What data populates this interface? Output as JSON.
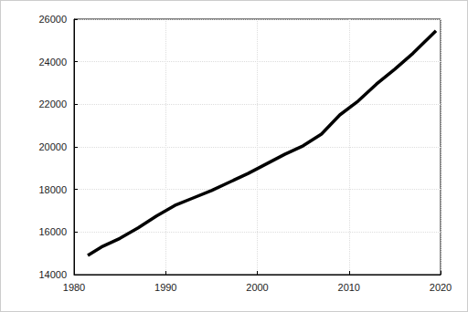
{
  "chart_data": {
    "type": "line",
    "x": [
      1981.5,
      1983,
      1985,
      1987,
      1989,
      1991,
      1993,
      1995,
      1997,
      1999,
      2001,
      2003,
      2005,
      2007,
      2009,
      2011,
      2013,
      2015,
      2017,
      2019.5
    ],
    "values": [
      14900,
      15300,
      15700,
      16200,
      16750,
      17250,
      17600,
      17950,
      18350,
      18750,
      19200,
      19650,
      20050,
      20600,
      21500,
      22150,
      22950,
      23650,
      24400,
      25450
    ],
    "color": "#000000",
    "xlim": [
      1980,
      2020
    ],
    "xticks": [
      1980,
      1990,
      2000,
      2010,
      2020
    ],
    "ylim": [
      14000,
      26000
    ],
    "yticks": [
      14000,
      16000,
      18000,
      20000,
      22000,
      24000,
      26000
    ],
    "grid": true
  }
}
